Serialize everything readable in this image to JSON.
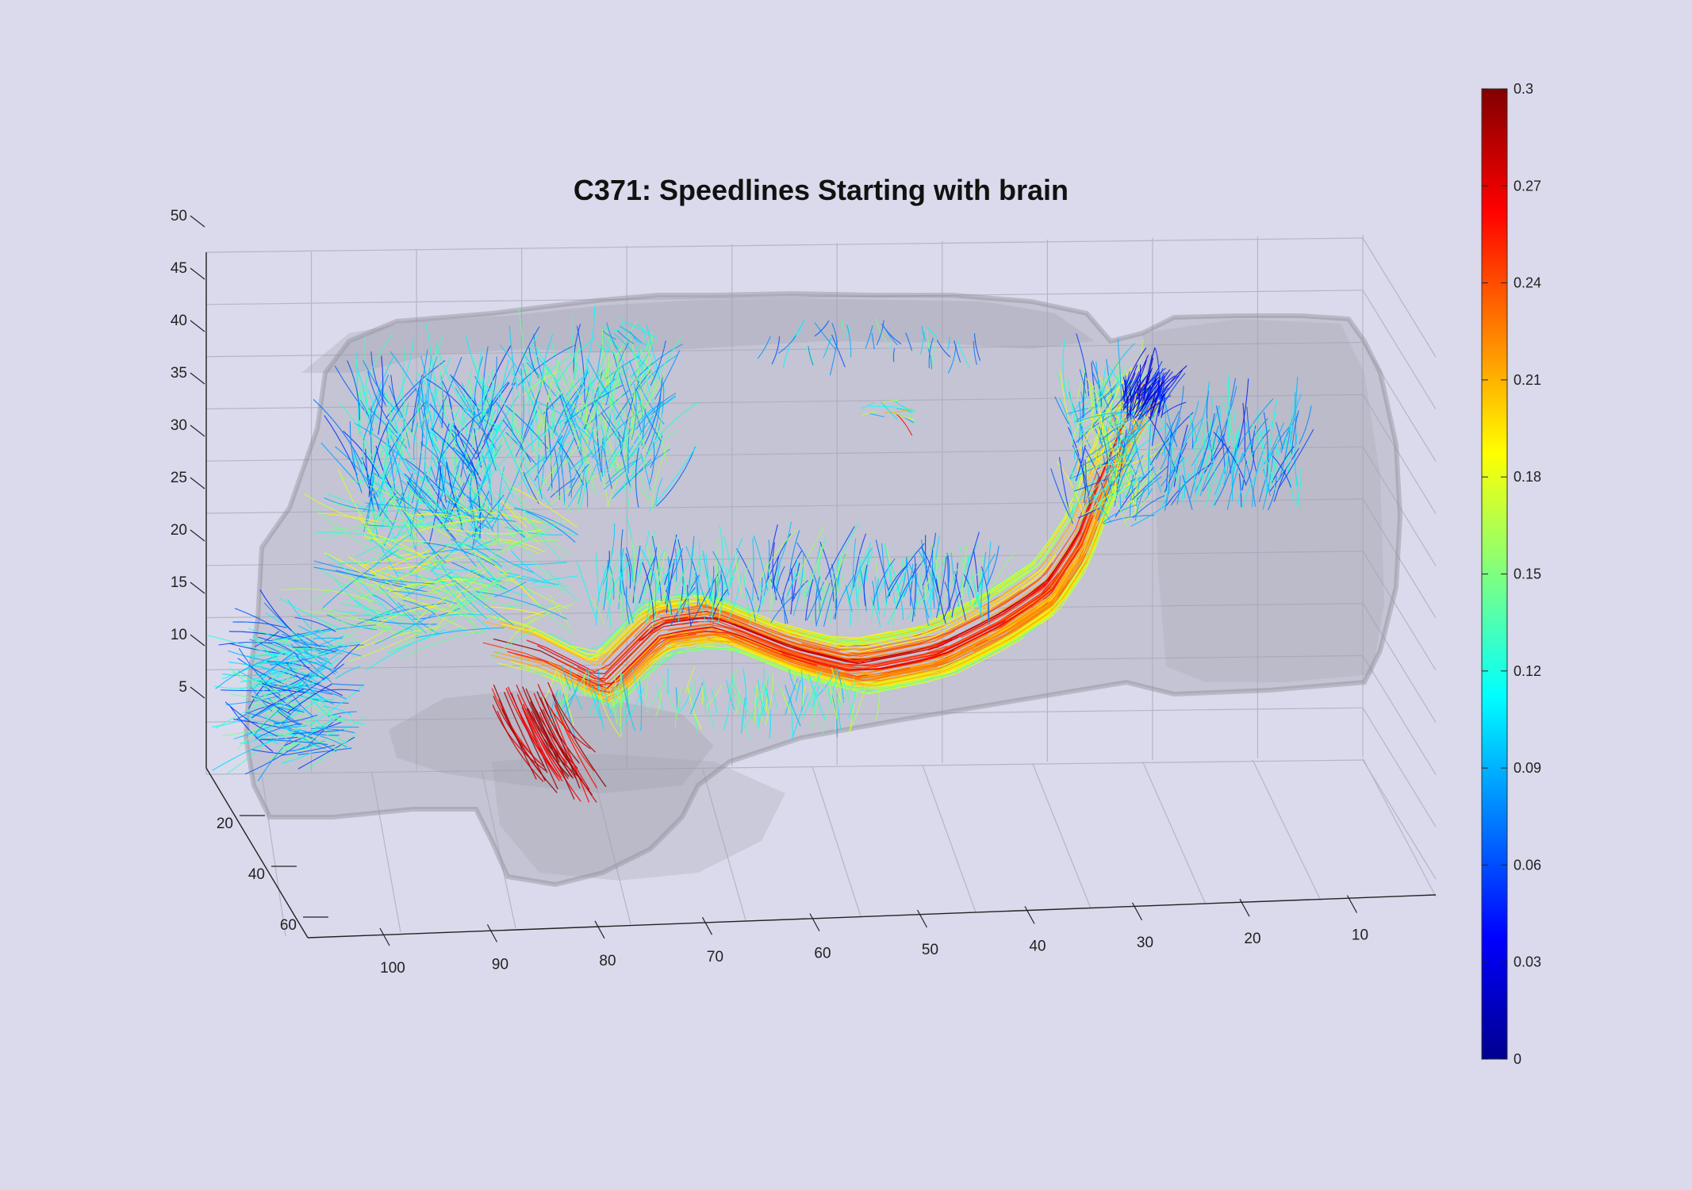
{
  "chart_data": {
    "type": "3d-streamline",
    "title": "C371: Speedlines Starting with brain",
    "xlabel": "",
    "ylabel": "",
    "zlabel": "",
    "x_ticks": [
      "100",
      "90",
      "80",
      "70",
      "60",
      "50",
      "40",
      "30",
      "20",
      "10"
    ],
    "y_ticks": [
      "20",
      "40",
      "60"
    ],
    "z_ticks": [
      "5",
      "10",
      "15",
      "20",
      "25",
      "30",
      "35",
      "40",
      "45",
      "50"
    ],
    "xlim": [
      0,
      107
    ],
    "ylim": [
      10,
      70
    ],
    "zlim": [
      0,
      50
    ],
    "grid": true,
    "colorbar": {
      "colormap": "jet",
      "min": 0,
      "max": 0.3,
      "ticks": [
        "0",
        "0.03",
        "0.06",
        "0.09",
        "0.12",
        "0.15",
        "0.18",
        "0.21",
        "0.24",
        "0.27",
        "0.3"
      ]
    },
    "colors": {
      "background": "#dadaec",
      "brain_surface": "#a8a8b2",
      "grid": "#b9b9c9",
      "axis": "#222222"
    }
  }
}
